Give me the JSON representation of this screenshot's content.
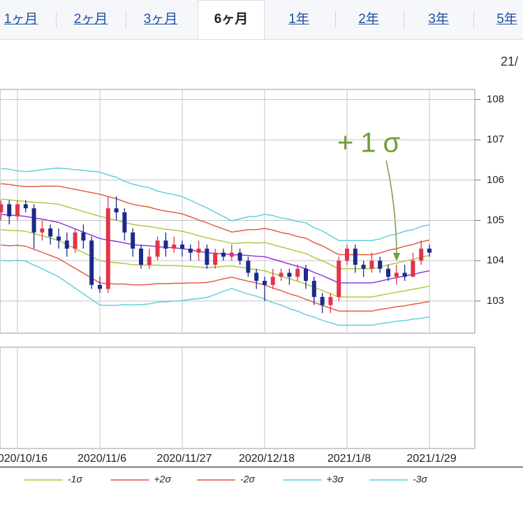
{
  "tabs": [
    "1ヶ月",
    "2ヶ月",
    "3ヶ月",
    "6ヶ月",
    "1年",
    "2年",
    "3年",
    "5年"
  ],
  "active_tab": 3,
  "date_label": "21/",
  "chart_data": {
    "type": "candlestick",
    "categories": [
      null,
      null,
      "2020/10/16",
      null,
      null,
      null,
      null,
      null,
      null,
      null,
      null,
      null,
      "2020/11/6",
      null,
      null,
      null,
      null,
      null,
      null,
      null,
      null,
      null,
      "2020/11/27",
      null,
      null,
      null,
      null,
      null,
      null,
      null,
      null,
      null,
      "2020/12/18",
      null,
      null,
      null,
      null,
      null,
      null,
      null,
      null,
      null,
      "2021/1/8",
      null,
      null,
      null,
      null,
      null,
      null,
      null,
      null,
      null,
      "2021/1/29"
    ],
    "open": [
      105.2,
      105.4,
      105.1,
      105.4,
      105.3,
      104.7,
      104.8,
      104.6,
      104.5,
      104.3,
      104.7,
      104.5,
      103.4,
      103.3,
      105.3,
      105.2,
      104.7,
      104.3,
      103.9,
      104.1,
      104.5,
      104.3,
      104.4,
      104.3,
      104.2,
      104.3,
      103.9,
      104.2,
      104.1,
      104.2,
      104.0,
      103.7,
      103.5,
      103.4,
      103.6,
      103.7,
      103.6,
      103.8,
      103.5,
      103.1,
      102.9,
      103.1,
      104.0,
      104.3,
      103.9,
      103.8,
      104.0,
      103.8,
      103.6,
      103.7,
      103.6,
      104.0,
      104.3
    ],
    "high": [
      105.5,
      105.5,
      105.5,
      105.5,
      105.4,
      105.0,
      104.9,
      104.8,
      104.7,
      104.8,
      104.9,
      104.6,
      103.6,
      105.6,
      105.6,
      105.3,
      104.8,
      104.4,
      104.3,
      104.6,
      104.7,
      104.6,
      104.5,
      104.4,
      104.5,
      104.4,
      104.3,
      104.3,
      104.4,
      104.3,
      104.1,
      103.8,
      103.6,
      103.8,
      103.8,
      103.8,
      103.9,
      103.9,
      103.6,
      103.2,
      103.2,
      104.1,
      104.4,
      104.4,
      104.0,
      104.2,
      104.1,
      103.9,
      103.9,
      103.9,
      104.2,
      104.5,
      104.4
    ],
    "low": [
      105.0,
      104.9,
      105.0,
      105.2,
      104.3,
      104.5,
      104.4,
      104.3,
      104.1,
      104.2,
      104.3,
      103.3,
      103.2,
      103.2,
      105.0,
      104.5,
      104.1,
      103.8,
      103.8,
      104.0,
      104.1,
      104.2,
      104.1,
      104.0,
      104.0,
      103.8,
      103.8,
      104.0,
      104.0,
      103.9,
      103.6,
      103.3,
      103.0,
      103.3,
      103.5,
      103.4,
      103.5,
      103.3,
      102.9,
      102.7,
      102.7,
      103.0,
      103.9,
      103.7,
      103.6,
      103.7,
      103.7,
      103.5,
      103.4,
      103.5,
      103.6,
      103.9,
      104.1
    ],
    "close": [
      105.4,
      105.1,
      105.4,
      105.3,
      104.7,
      104.8,
      104.6,
      104.5,
      104.3,
      104.7,
      104.5,
      103.4,
      103.3,
      105.3,
      105.2,
      104.7,
      104.3,
      103.9,
      104.1,
      104.5,
      104.3,
      104.4,
      104.3,
      104.2,
      104.3,
      103.9,
      104.2,
      104.1,
      104.2,
      104.0,
      103.7,
      103.5,
      103.4,
      103.6,
      103.7,
      103.6,
      103.8,
      103.5,
      103.1,
      102.9,
      103.1,
      104.0,
      104.3,
      103.9,
      103.8,
      104.0,
      103.8,
      103.6,
      103.7,
      103.6,
      104.0,
      104.3,
      104.2
    ],
    "up_color": "#e2344a",
    "down_color": "#1b2a8a",
    "series": [
      {
        "color": "#8a2be2",
        "values": [
          105.15,
          105.13,
          105.12,
          105.1,
          105.06,
          105.03,
          104.99,
          104.95,
          104.87,
          104.79,
          104.71,
          104.63,
          104.55,
          104.51,
          104.48,
          104.44,
          104.4,
          104.38,
          104.37,
          104.35,
          104.33,
          104.32,
          104.3,
          104.27,
          104.23,
          104.2,
          104.18,
          104.17,
          104.15,
          104.14,
          104.13,
          104.11,
          104.1,
          104.04,
          103.98,
          103.92,
          103.86,
          103.8,
          103.71,
          103.63,
          103.54,
          103.45,
          103.45,
          103.45,
          103.45,
          103.45,
          103.49,
          103.54,
          103.58,
          103.62,
          103.66,
          103.71,
          103.75
        ]
      },
      {
        "name": "+1σ",
        "color": "#aac53a",
        "values": [
          105.53,
          105.51,
          105.49,
          105.47,
          105.45,
          105.44,
          105.42,
          105.4,
          105.34,
          105.28,
          105.22,
          105.16,
          105.1,
          105.05,
          105.01,
          104.95,
          104.9,
          104.87,
          104.85,
          104.81,
          104.78,
          104.76,
          104.73,
          104.68,
          104.62,
          104.57,
          104.52,
          104.48,
          104.43,
          104.44,
          104.45,
          104.44,
          104.45,
          104.4,
          104.34,
          104.29,
          104.23,
          104.18,
          104.08,
          104.0,
          103.9,
          103.8,
          103.8,
          103.8,
          103.8,
          103.8,
          103.84,
          103.9,
          103.94,
          103.99,
          104.03,
          104.09,
          104.13
        ]
      },
      {
        "name": "-1σ",
        "color": "#aac53a",
        "values": [
          104.77,
          104.75,
          104.75,
          104.73,
          104.67,
          104.62,
          104.56,
          104.5,
          104.4,
          104.3,
          104.2,
          104.1,
          104.0,
          103.97,
          103.95,
          103.93,
          103.9,
          103.89,
          103.89,
          103.89,
          103.88,
          103.88,
          103.87,
          103.86,
          103.84,
          103.83,
          103.84,
          103.86,
          103.87,
          103.84,
          103.81,
          103.78,
          103.75,
          103.68,
          103.62,
          103.55,
          103.49,
          103.42,
          103.34,
          103.26,
          103.18,
          103.1,
          103.1,
          103.1,
          103.1,
          103.1,
          103.14,
          103.18,
          103.22,
          103.25,
          103.29,
          103.33,
          103.37
        ]
      },
      {
        "name": "+2σ",
        "color": "#e2553a",
        "values": [
          105.91,
          105.89,
          105.86,
          105.84,
          105.84,
          105.85,
          105.85,
          105.85,
          105.81,
          105.77,
          105.73,
          105.69,
          105.65,
          105.59,
          105.54,
          105.46,
          105.4,
          105.36,
          105.33,
          105.27,
          105.23,
          105.2,
          105.16,
          105.09,
          105.01,
          104.94,
          104.86,
          104.79,
          104.71,
          104.74,
          104.77,
          104.77,
          104.8,
          104.76,
          104.7,
          104.66,
          104.6,
          104.56,
          104.45,
          104.37,
          104.26,
          104.15,
          104.15,
          104.15,
          104.15,
          104.15,
          104.19,
          104.26,
          104.3,
          104.36,
          104.4,
          104.47,
          104.51
        ]
      },
      {
        "name": "-2σ",
        "color": "#e2553a",
        "values": [
          104.39,
          104.37,
          104.38,
          104.36,
          104.28,
          104.21,
          104.13,
          104.05,
          103.93,
          103.81,
          103.69,
          103.57,
          103.45,
          103.43,
          103.42,
          103.42,
          103.4,
          103.4,
          103.41,
          103.43,
          103.43,
          103.44,
          103.44,
          103.45,
          103.45,
          103.46,
          103.5,
          103.55,
          103.59,
          103.54,
          103.49,
          103.45,
          103.4,
          103.32,
          103.26,
          103.18,
          103.12,
          103.04,
          102.97,
          102.89,
          102.82,
          102.75,
          102.75,
          102.75,
          102.75,
          102.75,
          102.79,
          102.82,
          102.86,
          102.88,
          102.92,
          102.95,
          102.99
        ]
      },
      {
        "name": "+3σ",
        "color": "#5ccbd8",
        "values": [
          106.29,
          106.27,
          106.23,
          106.21,
          106.23,
          106.26,
          106.28,
          106.3,
          106.28,
          106.26,
          106.24,
          106.22,
          106.2,
          106.13,
          106.07,
          105.97,
          105.9,
          105.85,
          105.81,
          105.73,
          105.68,
          105.64,
          105.59,
          105.5,
          105.4,
          105.31,
          105.2,
          105.1,
          104.99,
          105.04,
          105.09,
          105.1,
          105.15,
          105.12,
          105.06,
          105.03,
          104.97,
          104.94,
          104.82,
          104.74,
          104.62,
          104.5,
          104.5,
          104.5,
          104.5,
          104.5,
          104.54,
          104.62,
          104.66,
          104.73,
          104.77,
          104.85,
          104.89
        ]
      },
      {
        "name": "-3σ",
        "color": "#5ccbd8",
        "values": [
          104.01,
          103.99,
          104.01,
          103.99,
          103.89,
          103.8,
          103.7,
          103.6,
          103.46,
          103.32,
          103.18,
          103.04,
          102.9,
          102.89,
          102.89,
          102.91,
          102.9,
          102.91,
          102.93,
          102.97,
          102.98,
          103.0,
          103.01,
          103.04,
          103.06,
          103.09,
          103.16,
          103.24,
          103.31,
          103.24,
          103.17,
          103.12,
          103.05,
          102.96,
          102.9,
          102.81,
          102.75,
          102.66,
          102.6,
          102.52,
          102.46,
          102.4,
          102.4,
          102.4,
          102.4,
          102.4,
          102.44,
          102.46,
          102.5,
          102.51,
          102.55,
          102.57,
          102.61
        ]
      }
    ],
    "ylim": [
      102.2,
      108.25
    ],
    "yticks": [
      103,
      104,
      105,
      106,
      107,
      108
    ],
    "grid": true,
    "annotation": "+1σ",
    "annotation_color": "#6f9e3c"
  }
}
